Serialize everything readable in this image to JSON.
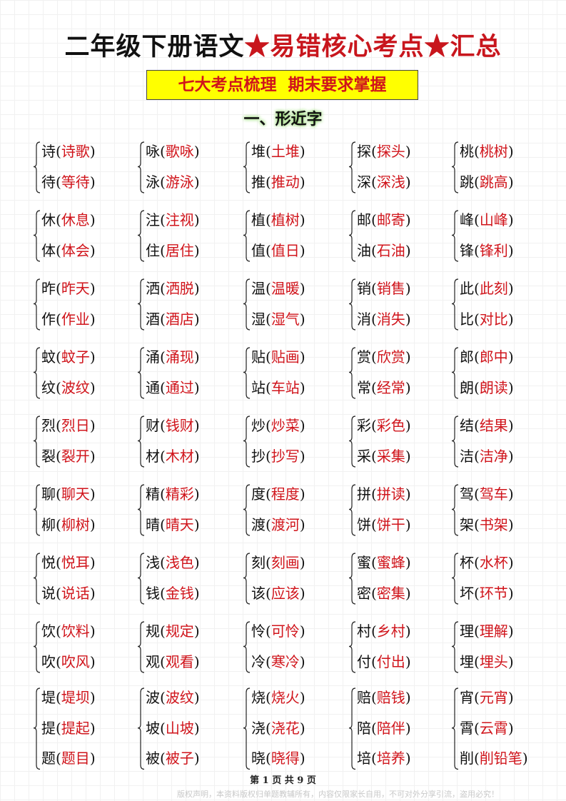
{
  "title": {
    "part1": "二年级下册语文",
    "star": "★",
    "part2": "易错核心考点",
    "part3": "汇总"
  },
  "subtitle": "七大考点梳理  期末要求掌握",
  "section_heading": "一、形近字",
  "colors": {
    "red": "#d0141b",
    "highlight": "#ffff00"
  },
  "groups": [
    [
      [
        [
          "诗",
          "诗歌"
        ],
        [
          "待",
          "等待"
        ]
      ],
      [
        [
          "咏",
          "歌咏"
        ],
        [
          "泳",
          "游泳"
        ]
      ],
      [
        [
          "堆",
          "土堆"
        ],
        [
          "推",
          "推动"
        ]
      ],
      [
        [
          "探",
          "探头"
        ],
        [
          "深",
          "深浅"
        ]
      ],
      [
        [
          "桃",
          "桃树"
        ],
        [
          "跳",
          "跳高"
        ]
      ]
    ],
    [
      [
        [
          "休",
          "休息"
        ],
        [
          "体",
          "体会"
        ]
      ],
      [
        [
          "注",
          "注视"
        ],
        [
          "住",
          "居住"
        ]
      ],
      [
        [
          "植",
          "植树"
        ],
        [
          "值",
          "值日"
        ]
      ],
      [
        [
          "邮",
          "邮寄"
        ],
        [
          "油",
          "石油"
        ]
      ],
      [
        [
          "峰",
          "山峰"
        ],
        [
          "锋",
          "锋利"
        ]
      ]
    ],
    [
      [
        [
          "昨",
          "昨天"
        ],
        [
          "作",
          "作业"
        ]
      ],
      [
        [
          "洒",
          "洒脱"
        ],
        [
          "酒",
          "酒店"
        ]
      ],
      [
        [
          "温",
          "温暖"
        ],
        [
          "湿",
          "湿气"
        ]
      ],
      [
        [
          "销",
          "销售"
        ],
        [
          "消",
          "消失"
        ]
      ],
      [
        [
          "此",
          "此刻"
        ],
        [
          "比",
          "对比"
        ]
      ]
    ],
    [
      [
        [
          "蚊",
          "蚊子"
        ],
        [
          "纹",
          "波纹"
        ]
      ],
      [
        [
          "涌",
          "涌现"
        ],
        [
          "通",
          "通过"
        ]
      ],
      [
        [
          "贴",
          "贴画"
        ],
        [
          "站",
          "车站"
        ]
      ],
      [
        [
          "赏",
          "欣赏"
        ],
        [
          "常",
          "经常"
        ]
      ],
      [
        [
          "郎",
          "郎中"
        ],
        [
          "朗",
          "朗读"
        ]
      ]
    ],
    [
      [
        [
          "烈",
          "烈日"
        ],
        [
          "裂",
          "裂开"
        ]
      ],
      [
        [
          "财",
          "钱财"
        ],
        [
          "材",
          "木材"
        ]
      ],
      [
        [
          "炒",
          "炒菜"
        ],
        [
          "抄",
          "抄写"
        ]
      ],
      [
        [
          "彩",
          "彩色"
        ],
        [
          "采",
          "采集"
        ]
      ],
      [
        [
          "结",
          "结果"
        ],
        [
          "洁",
          "洁净"
        ]
      ]
    ],
    [
      [
        [
          "聊",
          "聊天"
        ],
        [
          "柳",
          "柳树"
        ]
      ],
      [
        [
          "精",
          "精彩"
        ],
        [
          "晴",
          "晴天"
        ]
      ],
      [
        [
          "度",
          "程度"
        ],
        [
          "渡",
          "渡河"
        ]
      ],
      [
        [
          "拼",
          "拼读"
        ],
        [
          "饼",
          "饼干"
        ]
      ],
      [
        [
          "驾",
          "驾车"
        ],
        [
          "架",
          "书架"
        ]
      ]
    ],
    [
      [
        [
          "悦",
          "悦耳"
        ],
        [
          "说",
          "说话"
        ]
      ],
      [
        [
          "浅",
          "浅色"
        ],
        [
          "钱",
          "金钱"
        ]
      ],
      [
        [
          "刻",
          "刻画"
        ],
        [
          "该",
          "应该"
        ]
      ],
      [
        [
          "蜜",
          "蜜蜂"
        ],
        [
          "密",
          "密集"
        ]
      ],
      [
        [
          "杯",
          "水杯"
        ],
        [
          "坏",
          "环节"
        ]
      ]
    ],
    [
      [
        [
          "饮",
          "饮料"
        ],
        [
          "吹",
          "吹风"
        ]
      ],
      [
        [
          "规",
          "规定"
        ],
        [
          "观",
          "观看"
        ]
      ],
      [
        [
          "怜",
          "可怜"
        ],
        [
          "冷",
          "寒冷"
        ]
      ],
      [
        [
          "村",
          "乡村"
        ],
        [
          "付",
          "付出"
        ]
      ],
      [
        [
          "理",
          "理解"
        ],
        [
          "埋",
          "埋头"
        ]
      ]
    ],
    [
      [
        [
          "堤",
          "堤坝"
        ],
        [
          "提",
          "提起"
        ],
        [
          "题",
          "题目"
        ]
      ],
      [
        [
          "波",
          "波纹"
        ],
        [
          "坡",
          "山坡"
        ],
        [
          "被",
          "被子"
        ]
      ],
      [
        [
          "烧",
          "烧火"
        ],
        [
          "浇",
          "浇花"
        ],
        [
          "晓",
          "晓得"
        ]
      ],
      [
        [
          "赔",
          "赔钱"
        ],
        [
          "陪",
          "陪伴"
        ],
        [
          "培",
          "培养"
        ]
      ],
      [
        [
          "宵",
          "元宵"
        ],
        [
          "霄",
          "云霄"
        ],
        [
          "削",
          "削铅笔"
        ]
      ]
    ]
  ],
  "footer": {
    "page": "第 1 页 共 9 页",
    "copyright": "版权声明，本资料版权归单题教辅所有，内容仅限家长自用，不可对外分享引流，盗用必究！"
  }
}
